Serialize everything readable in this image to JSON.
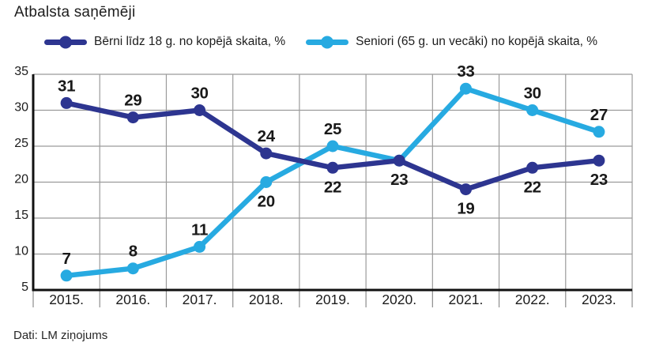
{
  "title": "Atbalsta saņēmēji",
  "source": "Dati: LM ziņojums",
  "legend": {
    "items": [
      {
        "label": "Bērni līdz 18 g. no kopējā skaita, %",
        "color": "#2d3590"
      },
      {
        "label": "Seniori (65 g. un vecāki) no kopējā skaita, %",
        "color": "#27aae1"
      }
    ]
  },
  "colors": {
    "children_line": "#2d3590",
    "seniors_line": "#27aae1",
    "grid": "#9b9b9b",
    "axis": "#111111",
    "value_label": "#191919"
  },
  "chart_data": {
    "type": "line",
    "title": "Atbalsta saņēmēji",
    "categories": [
      "2015.",
      "2016.",
      "2017.",
      "2018.",
      "2019.",
      "2020.",
      "2021.",
      "2022.",
      "2023."
    ],
    "series": [
      {
        "name": "Seniori (65 g. un vecāki) no kopējā skaita, %",
        "color": "#27aae1",
        "values": [
          7,
          8,
          11,
          20,
          25,
          23,
          33,
          30,
          27
        ],
        "label_pos": [
          "above",
          "above",
          "above",
          "below",
          "above",
          null,
          "above",
          "above",
          "above"
        ]
      },
      {
        "name": "Bērni līdz 18 g. no kopējā skaita, %",
        "color": "#2d3590",
        "values": [
          31,
          29,
          30,
          24,
          22,
          23,
          19,
          22,
          23
        ],
        "label_pos": [
          "above",
          "above",
          "above",
          "above",
          "below",
          "below",
          "below",
          "below",
          "below"
        ]
      }
    ],
    "xlabel": "",
    "ylabel": "",
    "ylim": [
      5,
      35
    ],
    "yticks": [
      5,
      10,
      15,
      20,
      25,
      30,
      35
    ],
    "grid": true,
    "legend_position": "top"
  }
}
